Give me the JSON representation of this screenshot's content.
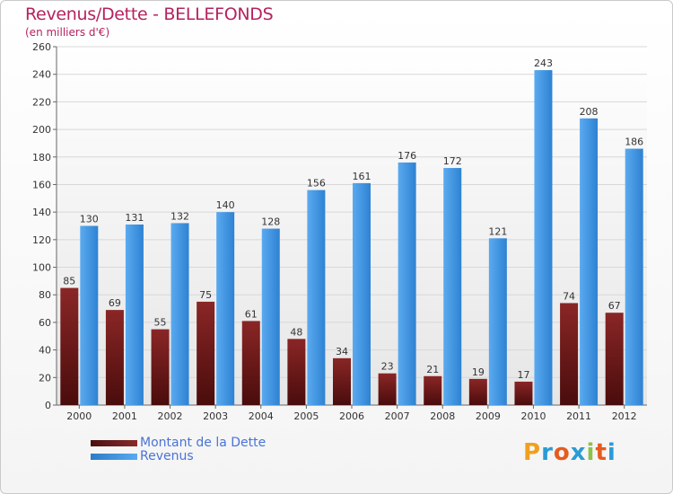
{
  "chart_data": {
    "type": "bar",
    "title": "Revenus/Dette - BELLEFONDS",
    "subtitle": "(en milliers d'€)",
    "categories": [
      "2000",
      "2001",
      "2002",
      "2003",
      "2004",
      "2005",
      "2006",
      "2007",
      "2008",
      "2009",
      "2010",
      "2011",
      "2012"
    ],
    "series": [
      {
        "name": "Montant de la Dette",
        "color": "#7a1f1f",
        "values": [
          85,
          69,
          55,
          75,
          61,
          48,
          34,
          23,
          21,
          19,
          17,
          74,
          67
        ]
      },
      {
        "name": "Revenus",
        "color": "#3a8fdc",
        "values": [
          130,
          131,
          132,
          140,
          128,
          156,
          161,
          176,
          172,
          121,
          243,
          208,
          186
        ]
      }
    ],
    "ylim": [
      0,
      260
    ],
    "yticks": [
      0,
      20,
      40,
      60,
      80,
      100,
      120,
      140,
      160,
      180,
      200,
      220,
      240,
      260
    ],
    "grid": true,
    "legend": "bottom-left"
  },
  "logo": {
    "letters": [
      "P",
      "r",
      "o",
      "x",
      "i",
      "t",
      "i"
    ],
    "colors": [
      "#f0a020",
      "#2a9bd6",
      "#e65c1e",
      "#2a9bd6",
      "#8bc34a",
      "#e65c1e",
      "#2a9bd6"
    ]
  }
}
